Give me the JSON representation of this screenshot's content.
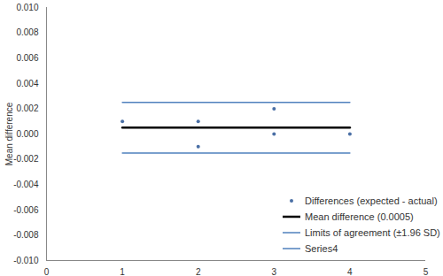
{
  "chart_data": {
    "type": "scatter",
    "y_label": "Mean difference",
    "xlim": [
      0,
      5
    ],
    "xticks": [
      0,
      1,
      2,
      3,
      4,
      5
    ],
    "ylim": [
      -0.01,
      0.01
    ],
    "yticks": [
      {
        "value": -0.01,
        "label": "-0.010"
      },
      {
        "value": -0.008,
        "label": "-0.008"
      },
      {
        "value": -0.006,
        "label": "-0.006"
      },
      {
        "value": -0.004,
        "label": "-0.004"
      },
      {
        "value": -0.002,
        "label": "-0.002"
      },
      {
        "value": 0,
        "label": "0.000"
      },
      {
        "value": 0.002,
        "label": "0.002"
      },
      {
        "value": 0.004,
        "label": "0.004"
      },
      {
        "value": 0.006,
        "label": "0.006"
      },
      {
        "value": 0.008,
        "label": "0.008"
      },
      {
        "value": 0.01,
        "label": "0.010"
      }
    ],
    "grid": false,
    "legend": "bottom-right",
    "series": [
      {
        "name": "Differences (expected - actual)",
        "type": "scatter",
        "marker": "circle",
        "color": "#4a6fa5",
        "x": [
          1,
          2,
          2,
          3,
          3,
          4
        ],
        "values": [
          0.001,
          0.001,
          -0.001,
          0.002,
          0,
          0
        ]
      },
      {
        "name": "Mean difference (0.0005)",
        "type": "line",
        "color": "#000000",
        "x": [
          1,
          4
        ],
        "values": [
          0.0005,
          0.0005
        ]
      },
      {
        "name": "Limits of agreement (±1.96 SD)",
        "type": "line",
        "color": "#4f81bd",
        "x": [
          1,
          4
        ],
        "values": [
          0.0025,
          0.0025
        ]
      },
      {
        "name": "Series4",
        "type": "line",
        "color": "#4f81bd",
        "x": [
          1,
          4
        ],
        "values": [
          -0.0015,
          -0.0015
        ]
      }
    ]
  }
}
